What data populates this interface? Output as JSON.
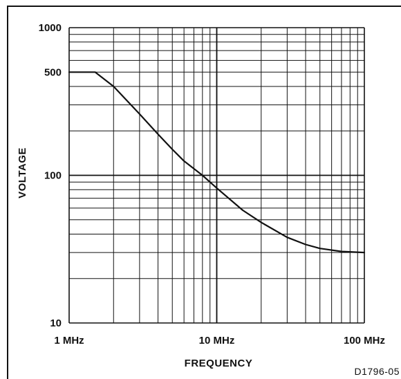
{
  "chart_data": {
    "type": "line",
    "title": "",
    "xlabel": "FREQUENCY",
    "ylabel": "VOLTAGE",
    "x_scale": "log",
    "y_scale": "log",
    "xlim": [
      1,
      100
    ],
    "ylim": [
      10,
      1000
    ],
    "x_unit": "MHz",
    "y_unit": "",
    "grid": true,
    "legend": "none",
    "x_ticks": [
      {
        "value": 1,
        "label": "1 MHz"
      },
      {
        "value": 10,
        "label": "10 MHz"
      },
      {
        "value": 100,
        "label": "100 MHz"
      }
    ],
    "y_ticks": [
      {
        "value": 10,
        "label": "10"
      },
      {
        "value": 100,
        "label": "100"
      },
      {
        "value": 500,
        "label": "500"
      },
      {
        "value": 1000,
        "label": "1000"
      }
    ],
    "series": [
      {
        "color": "#111111",
        "points": [
          [
            1.0,
            500
          ],
          [
            1.5,
            500
          ],
          [
            2.0,
            400
          ],
          [
            3.0,
            260
          ],
          [
            4.0,
            190
          ],
          [
            5.0,
            150
          ],
          [
            6.0,
            125
          ],
          [
            8.0,
            100
          ],
          [
            10.0,
            82
          ],
          [
            15.0,
            58
          ],
          [
            20.0,
            48
          ],
          [
            30.0,
            38
          ],
          [
            40.0,
            34
          ],
          [
            50.0,
            32
          ],
          [
            70.0,
            30.5
          ],
          [
            100.0,
            30
          ]
        ]
      }
    ],
    "annotation": "D1796-05"
  },
  "colors": {
    "ink": "#111111",
    "background": "#ffffff"
  }
}
